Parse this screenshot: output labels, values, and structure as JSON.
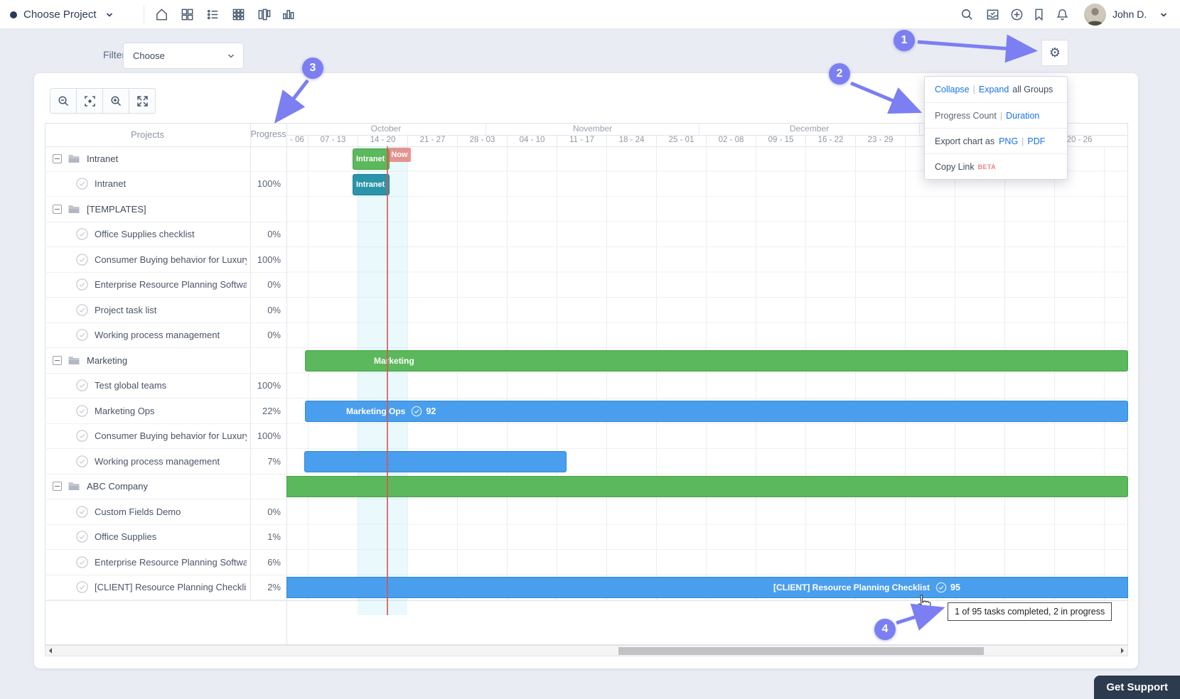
{
  "nav": {
    "project_selector": "Choose Project",
    "view_icons": [
      "home-icon",
      "dashboard-icon",
      "list-view-icon",
      "grid-view-icon",
      "board-view-icon",
      "chart-view-icon"
    ],
    "right_icons": [
      "search-icon",
      "task-inbox-icon",
      "add-icon",
      "bookmark-icon",
      "notifications-icon"
    ],
    "user": "John D."
  },
  "filter": {
    "label": "Filter",
    "value": "Choose"
  },
  "toolbar": {
    "icons": [
      "zoom-out-icon",
      "fit-screen-icon",
      "zoom-in-icon",
      "fullscreen-icon"
    ]
  },
  "settings_menu": {
    "collapse": "Collapse",
    "expand": "Expand",
    "groups_suffix": "all Groups",
    "progress_count": "Progress Count",
    "duration": "Duration",
    "export_prefix": "Export chart as",
    "png": "PNG",
    "pdf": "PDF",
    "copy_link": "Copy Link",
    "beta": "BETA",
    "sep": "|"
  },
  "table": {
    "projects_header": "Projects",
    "progress_header": "Progress",
    "rows": [
      {
        "type": "group",
        "name": "Intranet",
        "progress": ""
      },
      {
        "type": "task",
        "name": "Intranet",
        "progress": "100%"
      },
      {
        "type": "group",
        "name": "[TEMPLATES]",
        "progress": ""
      },
      {
        "type": "task",
        "name": "Office Supplies checklist",
        "progress": "0%"
      },
      {
        "type": "task",
        "name": "Consumer Buying behavior for Luxury ca",
        "progress": "100%"
      },
      {
        "type": "task",
        "name": "Enterprise Resource Planning Software C",
        "progress": "0%"
      },
      {
        "type": "task",
        "name": "Project task list",
        "progress": "0%"
      },
      {
        "type": "task",
        "name": "Working process management",
        "progress": "0%"
      },
      {
        "type": "group",
        "name": "Marketing",
        "progress": ""
      },
      {
        "type": "task",
        "name": "Test global teams",
        "progress": "100%"
      },
      {
        "type": "task",
        "name": "Marketing Ops",
        "progress": "22%"
      },
      {
        "type": "task",
        "name": "Consumer Buying behavior for Luxury ca",
        "progress": "100%"
      },
      {
        "type": "task",
        "name": "Working process management",
        "progress": "7%"
      },
      {
        "type": "group",
        "name": "ABC Company",
        "progress": ""
      },
      {
        "type": "task",
        "name": "Custom Fields Demo",
        "progress": "0%"
      },
      {
        "type": "task",
        "name": "Office Supplies",
        "progress": "1%"
      },
      {
        "type": "task",
        "name": "Enterprise Resource Planning Software C",
        "progress": "6%"
      },
      {
        "type": "task",
        "name": "[CLIENT] Resource Planning Checklist",
        "progress": "2%"
      }
    ]
  },
  "timeline": {
    "months": [
      "October",
      "November",
      "December",
      ""
    ],
    "weeks": [
      "- 06",
      "07 - 13",
      "14 - 20",
      "21 - 27",
      "28 - 03",
      "04 - 10",
      "11 - 17",
      "18 - 24",
      "25 - 01",
      "02 - 08",
      "09 - 15",
      "16 - 22",
      "23 - 29",
      "",
      "",
      "",
      "20 - 26"
    ],
    "now_label": "Now"
  },
  "bars": {
    "intranet_group": "Intranet",
    "intranet_task": "Intranet",
    "marketing_group": "Marketing",
    "marketing_ops": {
      "label": "Marketing Ops",
      "count": "92"
    },
    "client": {
      "label": "[CLIENT] Resource Planning Checklist",
      "count": "95"
    }
  },
  "tooltip": "1 of 95 tasks completed, 2 in progress",
  "annotations": {
    "1": "1",
    "2": "2",
    "3": "3",
    "4": "4"
  },
  "support_label": "Get Support",
  "colors": {
    "accent": "#7b7ff2",
    "link": "#1a73e8",
    "green": "#5cb85c",
    "blue": "#4a9eee",
    "teal": "#2a95a8",
    "now_red": "#d9534f",
    "header_dark": "#2b3a52"
  }
}
